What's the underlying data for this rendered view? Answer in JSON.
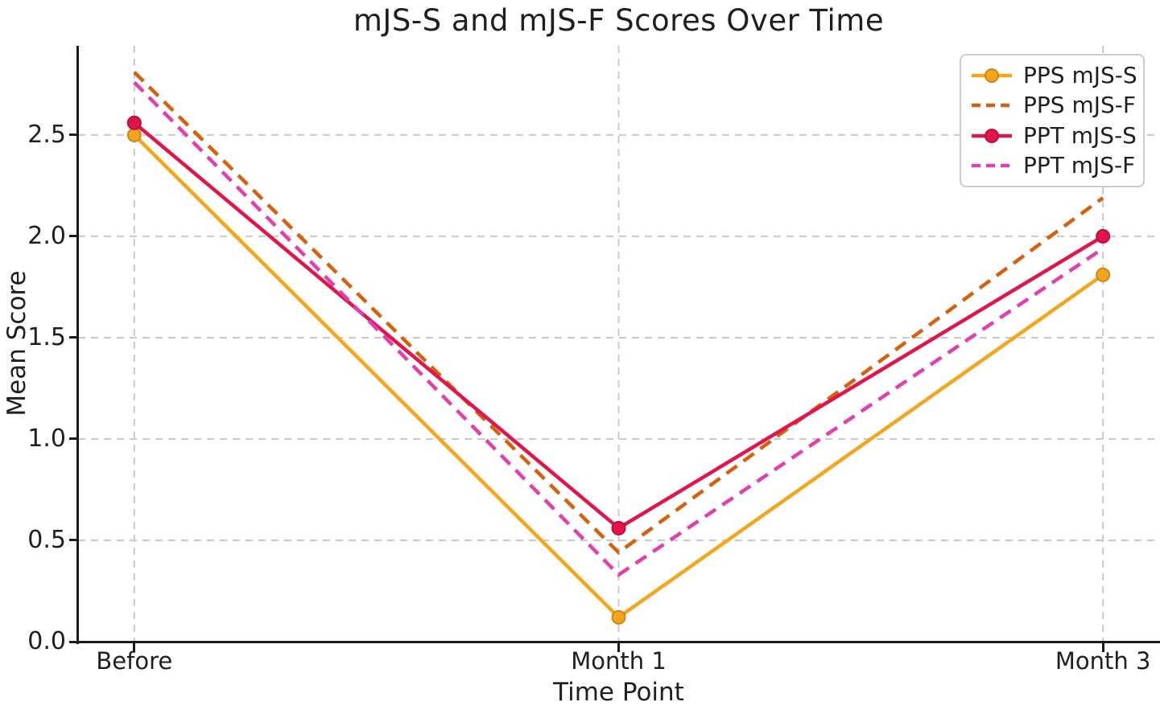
{
  "title": "mJS-S and mJS-F Scores Over Time",
  "chart_data": {
    "type": "line",
    "title": "mJS-S and mJS-F Scores Over Time",
    "xlabel": "Time Point",
    "ylabel": "Mean Score",
    "categories": [
      "Before",
      "Month 1",
      "Month 3"
    ],
    "series": [
      {
        "name": "PPS mJS-S",
        "values": [
          2.5,
          0.12,
          1.81
        ],
        "color": "#F5A51B",
        "style": "solid",
        "marker": "circle"
      },
      {
        "name": "PPS mJS-F",
        "values": [
          2.81,
          0.44,
          2.19
        ],
        "color": "#D7600F",
        "style": "dashed",
        "marker": "none"
      },
      {
        "name": "PPT mJS-S",
        "values": [
          2.56,
          0.56,
          2.0
        ],
        "color": "#E1154A",
        "style": "solid",
        "marker": "circle"
      },
      {
        "name": "PPT mJS-F",
        "values": [
          2.76,
          0.33,
          1.94
        ],
        "color": "#E23FAE",
        "style": "dashed",
        "marker": "none"
      }
    ],
    "ylim": [
      0,
      2.94
    ],
    "yticks": [
      "0.0",
      "0.5",
      "1.0",
      "1.5",
      "2.0",
      "2.5"
    ],
    "grid": true,
    "grid_style": "dashed",
    "legend_position": "upper right"
  },
  "colors": {
    "background": "#ffffff",
    "text": "#1f1f1f",
    "axis": "#1a1a1a",
    "grid": "#c9c9c9",
    "legend_border": "#cccccc"
  }
}
